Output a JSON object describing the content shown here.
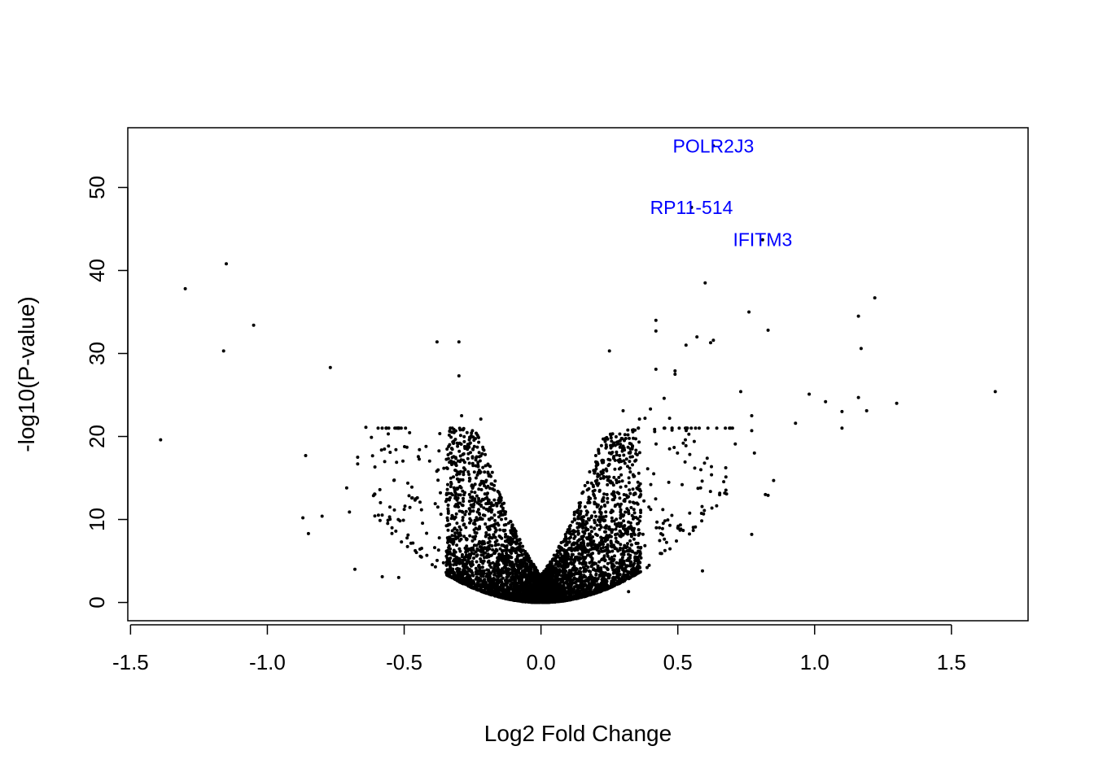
{
  "chart_data": {
    "type": "scatter",
    "title": "",
    "xlabel": "Log2 Fold Change",
    "ylabel": "-log10(P-value)",
    "xlim": [
      -1.51,
      1.78
    ],
    "ylim": [
      -2.2,
      57.2
    ],
    "x_ticks": [
      -1.5,
      -1.0,
      -0.5,
      0.0,
      0.5,
      1.0,
      1.5
    ],
    "x_tick_labels": [
      "-1.5",
      "-1.0",
      "-0.5",
      "0.0",
      "0.5",
      "1.0",
      "1.5"
    ],
    "y_ticks": [
      0,
      10,
      20,
      30,
      40,
      50
    ],
    "y_tick_labels": [
      "0",
      "10",
      "20",
      "30",
      "40",
      "50"
    ],
    "grid": false,
    "point_color": "#000000",
    "label_color": "#0000ff",
    "labeled_points": [
      {
        "label": "POLR2J3",
        "x": 0.63,
        "y": 55.0
      },
      {
        "label": "RP11-514",
        "x": 0.55,
        "y": 47.6
      },
      {
        "label": "IFITM3",
        "x": 0.81,
        "y": 43.7
      }
    ],
    "outliers": [
      {
        "x": -1.39,
        "y": 19.6
      },
      {
        "x": -1.3,
        "y": 37.8
      },
      {
        "x": -1.16,
        "y": 30.3
      },
      {
        "x": -1.15,
        "y": 40.8
      },
      {
        "x": -1.05,
        "y": 33.4
      },
      {
        "x": -0.77,
        "y": 28.3
      },
      {
        "x": -0.86,
        "y": 17.7
      },
      {
        "x": -0.87,
        "y": 10.2
      },
      {
        "x": -0.85,
        "y": 8.3
      },
      {
        "x": -0.8,
        "y": 10.4
      },
      {
        "x": -0.71,
        "y": 13.8
      },
      {
        "x": -0.64,
        "y": 21.1
      },
      {
        "x": -0.67,
        "y": 17.5
      },
      {
        "x": -0.67,
        "y": 16.7
      },
      {
        "x": -0.7,
        "y": 10.9
      },
      {
        "x": -0.68,
        "y": 4.0
      },
      {
        "x": -0.38,
        "y": 31.4
      },
      {
        "x": -0.3,
        "y": 31.4
      },
      {
        "x": -0.3,
        "y": 27.3
      },
      {
        "x": -0.29,
        "y": 22.5
      },
      {
        "x": -0.22,
        "y": 22.1
      },
      {
        "x": -0.42,
        "y": 18.8
      },
      {
        "x": -0.49,
        "y": 18.7
      },
      {
        "x": -0.52,
        "y": 3.0
      },
      {
        "x": -0.58,
        "y": 3.1
      },
      {
        "x": 0.25,
        "y": 30.3
      },
      {
        "x": 0.42,
        "y": 34.0
      },
      {
        "x": 0.42,
        "y": 32.7
      },
      {
        "x": 0.42,
        "y": 28.1
      },
      {
        "x": 0.49,
        "y": 27.5
      },
      {
        "x": 0.49,
        "y": 27.9
      },
      {
        "x": 0.53,
        "y": 31.0
      },
      {
        "x": 0.57,
        "y": 32.0
      },
      {
        "x": 0.6,
        "y": 38.5
      },
      {
        "x": 0.62,
        "y": 31.3
      },
      {
        "x": 0.63,
        "y": 31.6
      },
      {
        "x": 0.76,
        "y": 35.0
      },
      {
        "x": 0.83,
        "y": 32.8
      },
      {
        "x": 0.73,
        "y": 25.4
      },
      {
        "x": 0.45,
        "y": 24.6
      },
      {
        "x": 0.4,
        "y": 23.3
      },
      {
        "x": 0.38,
        "y": 22.2
      },
      {
        "x": 0.36,
        "y": 22.1
      },
      {
        "x": 0.3,
        "y": 23.1
      },
      {
        "x": 0.47,
        "y": 22.2
      },
      {
        "x": 0.93,
        "y": 21.6
      },
      {
        "x": 0.98,
        "y": 25.1
      },
      {
        "x": 1.04,
        "y": 24.2
      },
      {
        "x": 1.1,
        "y": 23.0
      },
      {
        "x": 1.1,
        "y": 21.0
      },
      {
        "x": 1.16,
        "y": 24.7
      },
      {
        "x": 1.19,
        "y": 23.1
      },
      {
        "x": 1.16,
        "y": 34.5
      },
      {
        "x": 1.17,
        "y": 30.6
      },
      {
        "x": 1.22,
        "y": 36.7
      },
      {
        "x": 1.3,
        "y": 24.0
      },
      {
        "x": 1.66,
        "y": 25.4
      },
      {
        "x": 0.77,
        "y": 20.7
      },
      {
        "x": 0.77,
        "y": 22.5
      },
      {
        "x": 0.78,
        "y": 18.0
      },
      {
        "x": 0.71,
        "y": 19.1
      },
      {
        "x": 0.85,
        "y": 14.7
      },
      {
        "x": 0.82,
        "y": 13.0
      },
      {
        "x": 0.83,
        "y": 12.9
      },
      {
        "x": 0.77,
        "y": 8.2
      },
      {
        "x": 0.59,
        "y": 3.8
      },
      {
        "x": 0.56,
        "y": 19.4
      },
      {
        "x": 0.52,
        "y": 19.2
      },
      {
        "x": 0.47,
        "y": 18.5
      },
      {
        "x": 0.27,
        "y": 3.8
      },
      {
        "x": 0.32,
        "y": 1.3
      }
    ],
    "cloud": {
      "points_per_side": 2600,
      "left": {
        "x_min": 0.004,
        "x_max": 0.62,
        "x_typical": 0.18,
        "y_max_typical": 19.0
      },
      "right": {
        "x_min": 0.004,
        "x_max": 0.7,
        "x_typical": 0.19,
        "y_max_typical": 18.5
      }
    }
  }
}
